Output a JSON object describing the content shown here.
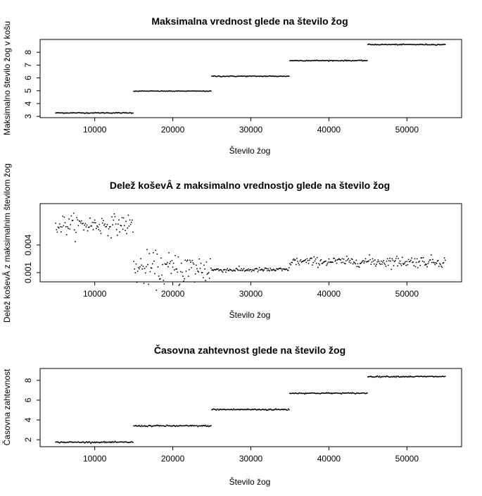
{
  "chart_data": [
    {
      "type": "scatter",
      "title": "Maksimalna vrednost glede na število žog",
      "xlabel": "Število žog",
      "ylabel": "Maksimalno število žog v košu",
      "xlim": [
        3000,
        57000
      ],
      "ylim": [
        2.9,
        9.0
      ],
      "x_ticks": [
        10000,
        20000,
        30000,
        40000,
        50000
      ],
      "y_ticks": [
        3,
        4,
        5,
        6,
        7,
        8
      ],
      "y_tick_labels": [
        "3",
        "4",
        "5",
        "6",
        "7",
        "8"
      ],
      "x_range": [
        5000,
        55000
      ],
      "segments": [
        {
          "x_start": 5000,
          "x_end": 15000,
          "y": 3.27,
          "noise": 0.03
        },
        {
          "x_start": 15000,
          "x_end": 25000,
          "y": 4.97,
          "noise": 0.02
        },
        {
          "x_start": 25000,
          "x_end": 35000,
          "y": 6.13,
          "noise": 0.03
        },
        {
          "x_start": 35000,
          "x_end": 45000,
          "y": 7.35,
          "noise": 0.03
        },
        {
          "x_start": 45000,
          "x_end": 55000,
          "y": 8.6,
          "noise": 0.03
        }
      ]
    },
    {
      "type": "scatter",
      "title": "Delež koševÂ z maksimalno vrednostjo glede na število žog",
      "xlabel": "Število žog",
      "ylabel": "Delež koševÂ z maksimalnim številom žog",
      "xlim": [
        3000,
        57000
      ],
      "ylim": [
        0.0,
        0.0085
      ],
      "x_ticks": [
        10000,
        20000,
        30000,
        40000,
        50000
      ],
      "y_ticks": [
        0.001,
        0.004
      ],
      "y_tick_labels": [
        "0.001",
        "0.004"
      ],
      "x_range": [
        5000,
        55000
      ],
      "segments": [
        {
          "x_start": 5000,
          "x_end": 15000,
          "y": 0.0062,
          "noise": 0.0009
        },
        {
          "x_start": 15000,
          "x_end": 25000,
          "y": 0.0014,
          "noise": 0.0015
        },
        {
          "x_start": 25000,
          "x_end": 35000,
          "y": 0.0013,
          "noise": 0.0002
        },
        {
          "x_start": 35000,
          "x_end": 45000,
          "y": 0.0022,
          "noise": 0.0004
        },
        {
          "x_start": 45000,
          "x_end": 55000,
          "y": 0.0022,
          "noise": 0.0005
        }
      ]
    },
    {
      "type": "scatter",
      "title": "Časovna zahtevnost glede na število žog",
      "xlabel": "Število žog",
      "ylabel": "Časovna zahtevnost",
      "xlim": [
        3000,
        57000
      ],
      "ylim": [
        1.3,
        9.2
      ],
      "x_ticks": [
        10000,
        20000,
        30000,
        40000,
        50000
      ],
      "y_ticks": [
        2,
        4,
        6,
        8
      ],
      "y_tick_labels": [
        "2",
        "4",
        "6",
        "8"
      ],
      "x_range": [
        5000,
        55000
      ],
      "segments": [
        {
          "x_start": 5000,
          "x_end": 15000,
          "y": 1.75,
          "noise": 0.05
        },
        {
          "x_start": 15000,
          "x_end": 25000,
          "y": 3.4,
          "noise": 0.06
        },
        {
          "x_start": 25000,
          "x_end": 35000,
          "y": 5.05,
          "noise": 0.07
        },
        {
          "x_start": 35000,
          "x_end": 45000,
          "y": 6.7,
          "noise": 0.05
        },
        {
          "x_start": 45000,
          "x_end": 55000,
          "y": 8.38,
          "noise": 0.05
        }
      ]
    }
  ]
}
